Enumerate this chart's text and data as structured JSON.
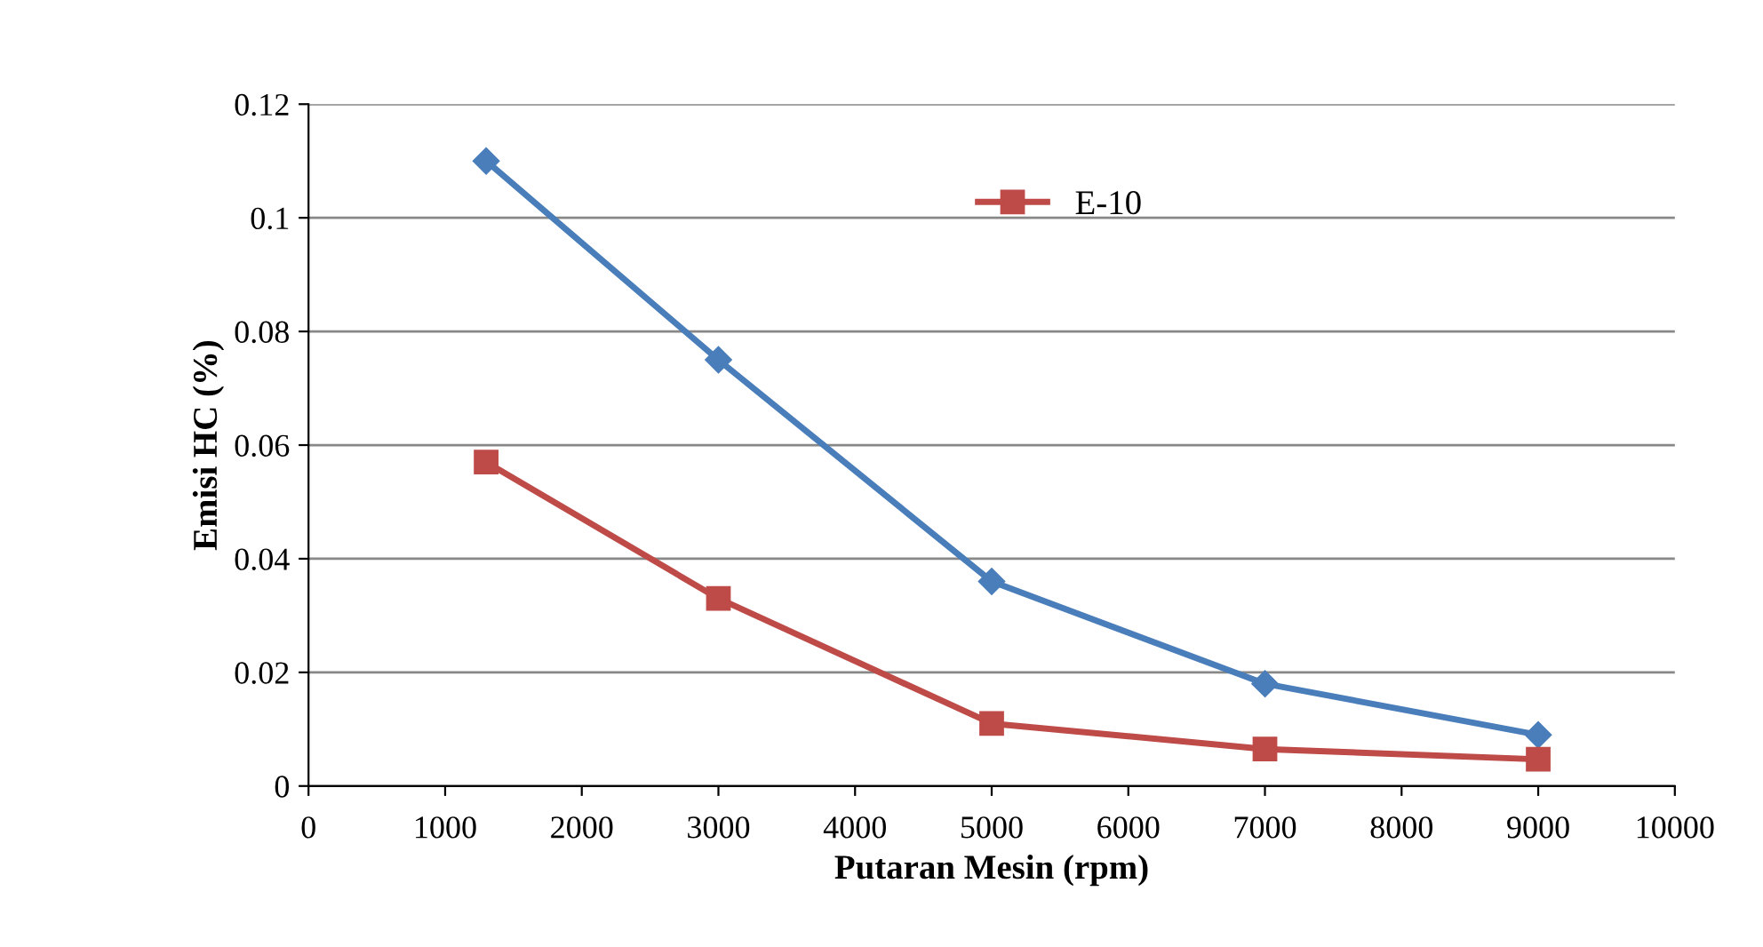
{
  "chart_data": {
    "type": "line",
    "xlabel": "Putaran Mesin (rpm)",
    "ylabel": "Emisi HC (%)",
    "x": [
      1300,
      3000,
      5000,
      7000,
      9000
    ],
    "series": [
      {
        "color": "#4a7ebb",
        "values": [
          0.11,
          0.075,
          0.036,
          0.018,
          0.009
        ],
        "marker": "diamond"
      },
      {
        "name": "E-10",
        "color": "#be4b48",
        "values": [
          0.057,
          0.033,
          0.011,
          0.0065,
          0.0047
        ],
        "marker": "square"
      }
    ],
    "xlim": [
      0,
      10000
    ],
    "xticks": [
      0,
      1000,
      2000,
      3000,
      4000,
      5000,
      6000,
      7000,
      8000,
      9000,
      10000
    ],
    "ylim": [
      0,
      0.12
    ],
    "yticks": [
      0,
      0.02,
      0.04,
      0.06,
      0.08,
      0.1,
      0.12
    ],
    "grid": "y",
    "legend": "top",
    "line_style": "solid"
  }
}
